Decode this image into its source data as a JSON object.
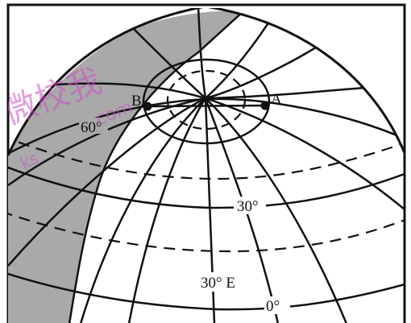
{
  "points": {
    "a": {
      "label": "A"
    },
    "b": {
      "label": "B"
    }
  },
  "parallels": {
    "lat60": "60°",
    "lat30": "30°",
    "lat0": "0°"
  },
  "meridian_label": "30° E",
  "watermark": {
    "glyphs": "微校我",
    "site": "com",
    "site_left": "ks"
  },
  "colors": {
    "shade": "#a9a9a9",
    "line": "#111111",
    "watermark": "#c94fc4"
  }
}
